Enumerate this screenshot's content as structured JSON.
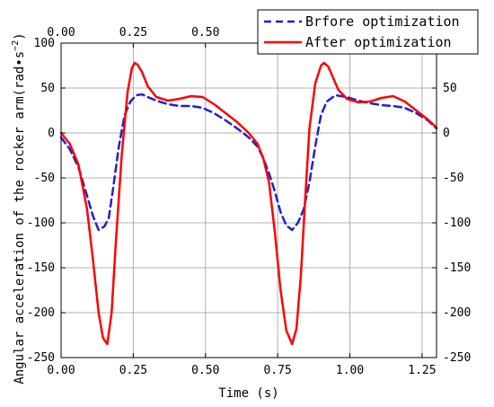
{
  "chart_data": {
    "type": "line",
    "xlabel": "Time (s)",
    "ylabel_main": "Angular acceleration of the rocker arm(rad•s",
    "ylabel_sup": "−2",
    "ylabel_close": ")",
    "xlim": [
      0,
      1.3
    ],
    "ylim": [
      -250,
      100
    ],
    "x_ticks": [
      0,
      0.25,
      0.5,
      0.75,
      1.0,
      1.25
    ],
    "x_tick_labels": [
      "0.00",
      "0.25",
      "0.50",
      "0.75",
      "1.00",
      "1.25"
    ],
    "x_top_ticks": [
      0,
      0.25,
      0.5
    ],
    "x_top_tick_labels": [
      "0.00",
      "0.25",
      "0.50"
    ],
    "y_ticks": [
      -250,
      -200,
      -150,
      -100,
      -50,
      0,
      50,
      100
    ],
    "y_tick_labels": [
      "-250",
      "-200",
      "-150",
      "-100",
      "-50",
      "0",
      "50",
      "100"
    ],
    "y_right_ticks": [
      -250,
      -200,
      -150,
      -100,
      -50,
      0,
      50
    ],
    "y_right_tick_labels": [
      "-250",
      "-200",
      "-150",
      "-100",
      "-50",
      "0",
      "50"
    ],
    "grid": true,
    "legend_position": "top-right",
    "series": [
      {
        "name": "Brfore optimization",
        "color": "#1f1fd6",
        "style": "dashed",
        "x": [
          0.0,
          0.03,
          0.06,
          0.09,
          0.11,
          0.13,
          0.15,
          0.165,
          0.18,
          0.2,
          0.22,
          0.24,
          0.26,
          0.28,
          0.3,
          0.33,
          0.37,
          0.41,
          0.45,
          0.49,
          0.53,
          0.57,
          0.61,
          0.65,
          0.68,
          0.7,
          0.72,
          0.74,
          0.76,
          0.78,
          0.8,
          0.82,
          0.84,
          0.86,
          0.88,
          0.9,
          0.92,
          0.95,
          0.99,
          1.03,
          1.07,
          1.11,
          1.15,
          1.19,
          1.23,
          1.27,
          1.3
        ],
        "y": [
          -5,
          -18,
          -38,
          -70,
          -92,
          -108,
          -104,
          -95,
          -62,
          -15,
          20,
          35,
          42,
          43,
          40,
          36,
          32,
          30,
          30,
          28,
          22,
          14,
          5,
          -5,
          -15,
          -28,
          -45,
          -65,
          -88,
          -103,
          -108,
          -100,
          -85,
          -55,
          -15,
          20,
          35,
          42,
          40,
          36,
          33,
          31,
          30,
          28,
          22,
          14,
          5
        ]
      },
      {
        "name": "After optimization",
        "color": "#ff0000",
        "style": "solid",
        "x": [
          0.0,
          0.03,
          0.06,
          0.09,
          0.11,
          0.13,
          0.145,
          0.16,
          0.175,
          0.19,
          0.21,
          0.23,
          0.245,
          0.255,
          0.265,
          0.28,
          0.3,
          0.33,
          0.37,
          0.41,
          0.45,
          0.49,
          0.53,
          0.57,
          0.61,
          0.65,
          0.68,
          0.7,
          0.72,
          0.74,
          0.76,
          0.78,
          0.8,
          0.815,
          0.83,
          0.845,
          0.86,
          0.88,
          0.9,
          0.91,
          0.925,
          0.94,
          0.96,
          0.99,
          1.03,
          1.07,
          1.11,
          1.15,
          1.19,
          1.23,
          1.27,
          1.3
        ],
        "y": [
          0,
          -12,
          -35,
          -85,
          -140,
          -200,
          -228,
          -235,
          -200,
          -120,
          -25,
          45,
          72,
          78,
          76,
          68,
          52,
          40,
          36,
          38,
          41,
          40,
          32,
          22,
          12,
          0,
          -12,
          -28,
          -55,
          -110,
          -175,
          -220,
          -235,
          -218,
          -160,
          -75,
          5,
          55,
          75,
          78,
          74,
          63,
          48,
          38,
          34,
          35,
          39,
          41,
          35,
          25,
          15,
          6
        ]
      }
    ]
  }
}
